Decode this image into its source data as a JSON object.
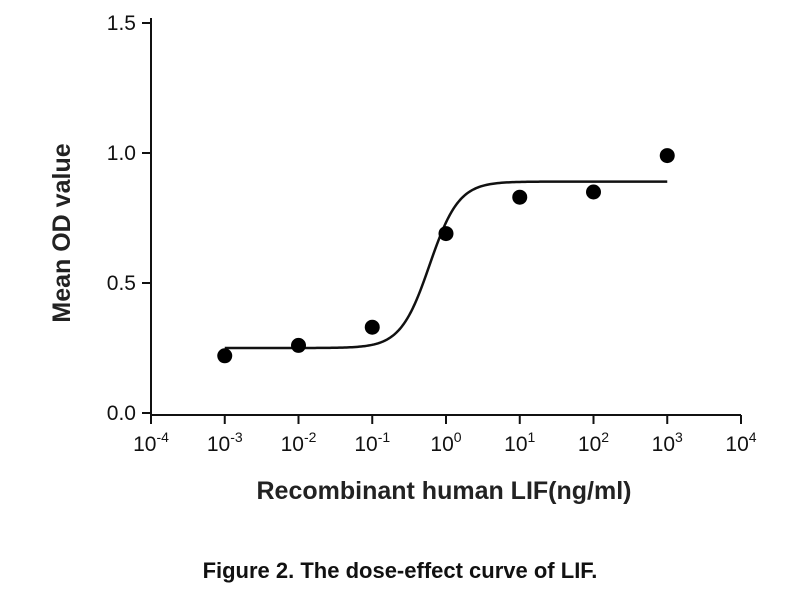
{
  "chart_data": {
    "type": "scatter",
    "title": "",
    "xlabel": "Recombinant human LIF(ng/ml)",
    "ylabel": "Mean OD value",
    "x_scale": "log",
    "xlim": [
      0.0001,
      10000
    ],
    "ylim": [
      0,
      1.5
    ],
    "x_ticks": [
      0.0001,
      0.001,
      0.01,
      0.1,
      1,
      10,
      100,
      1000,
      10000
    ],
    "x_tick_exponents": [
      "-4",
      "-3",
      "-2",
      "-1",
      "0",
      "1",
      "2",
      "3",
      "4"
    ],
    "x_tick_base": "10",
    "y_ticks": [
      0,
      0.5,
      1,
      1.5
    ],
    "y_tick_labels": [
      "0.0",
      "0.5",
      "1.0",
      "1.5"
    ],
    "grid": false,
    "points": {
      "x": [
        0.001,
        0.01,
        0.1,
        1,
        10,
        100,
        1000
      ],
      "y": [
        0.22,
        0.26,
        0.33,
        0.69,
        0.83,
        0.85,
        0.99
      ]
    },
    "fit_curve": {
      "type": "four-parameter-logistic",
      "bottom": 0.25,
      "top": 0.89,
      "ec50": 0.6,
      "hill_slope": 2.2,
      "x_range": [
        0.001,
        1000
      ]
    }
  },
  "caption": "Figure 2. The dose-effect curve of LIF."
}
